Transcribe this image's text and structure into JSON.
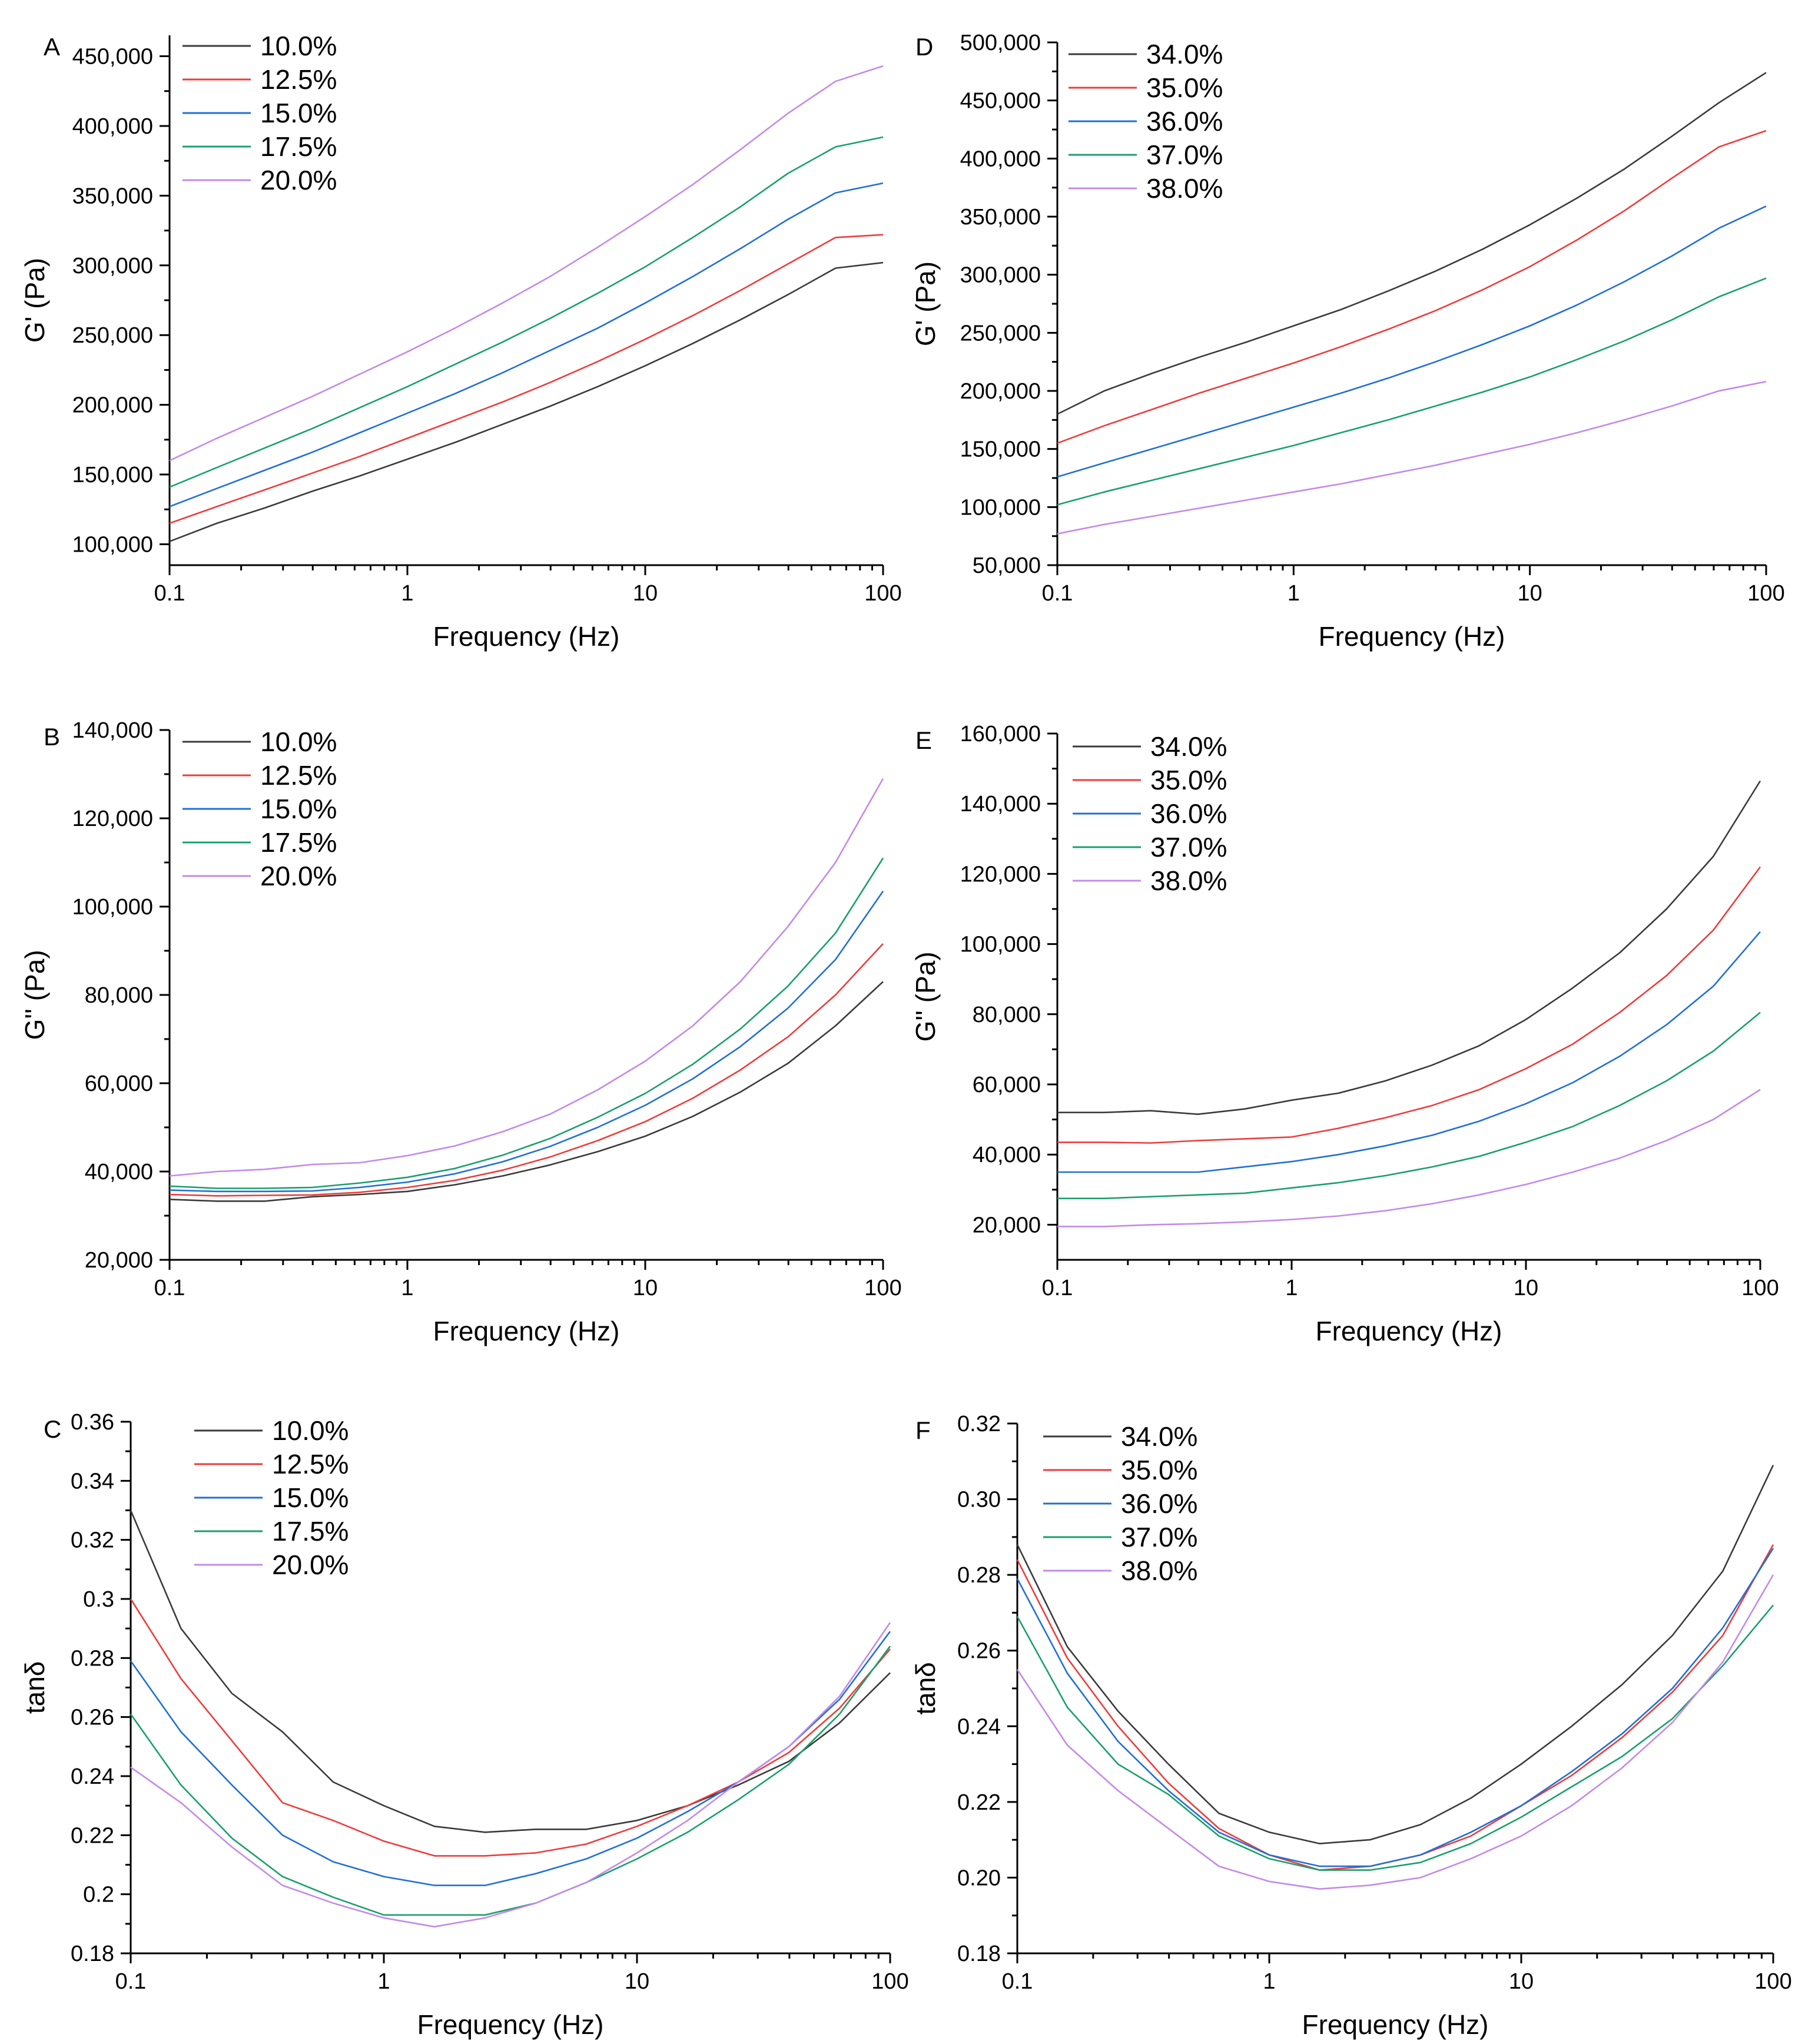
{
  "figure": {
    "colors": [
      "#3a3a3a",
      "#ee3b3b",
      "#1f6fd6",
      "#17a06a",
      "#c489e8"
    ]
  },
  "chart_data": [
    {
      "panel_label": "A",
      "type": "line",
      "ylabel": "G' (Pa)",
      "xlabel": "Frequency (Hz)",
      "xscale": "log",
      "xlim": [
        0.1,
        100
      ],
      "ylim": [
        85000,
        465000
      ],
      "xticks": [
        0.1,
        1,
        10,
        100
      ],
      "xtick_labels": [
        "0.1",
        "1",
        "10",
        "100"
      ],
      "yticks": [
        100000,
        150000,
        200000,
        250000,
        300000,
        350000,
        400000,
        450000
      ],
      "ytick_labels": [
        "100,000",
        "150,000",
        "200,000",
        "250,000",
        "300,000",
        "350,000",
        "400,000",
        "450,000"
      ],
      "legend_position": "top-left",
      "x": [
        0.1,
        0.158,
        0.251,
        0.398,
        0.631,
        1,
        1.585,
        2.512,
        3.981,
        6.31,
        10,
        15.85,
        25.12,
        39.81,
        63.1,
        100
      ],
      "series": [
        {
          "name": "10.0%",
          "values": [
            102000,
            115000,
            126000,
            138000,
            149000,
            161000,
            173000,
            186000,
            199000,
            213000,
            228000,
            244000,
            261000,
            279000,
            298000,
            302000
          ]
        },
        {
          "name": "12.5%",
          "values": [
            115000,
            127000,
            139000,
            151000,
            163000,
            176000,
            189000,
            202000,
            216000,
            231000,
            247000,
            264000,
            282000,
            301000,
            320000,
            322000
          ]
        },
        {
          "name": "15.0%",
          "values": [
            127000,
            140000,
            153000,
            166000,
            180000,
            194000,
            208000,
            223000,
            239000,
            255000,
            273000,
            292000,
            312000,
            333000,
            352000,
            359000
          ]
        },
        {
          "name": "17.5%",
          "values": [
            141000,
            155000,
            169000,
            183000,
            198000,
            213000,
            229000,
            245000,
            262000,
            280000,
            299000,
            320000,
            342000,
            366000,
            385000,
            392000
          ]
        },
        {
          "name": "20.0%",
          "values": [
            160000,
            176000,
            191000,
            206000,
            222000,
            238000,
            255000,
            273000,
            292000,
            313000,
            335000,
            358000,
            383000,
            409000,
            432000,
            443000
          ]
        }
      ]
    },
    {
      "panel_label": "B",
      "type": "line",
      "ylabel": "G'' (Pa)",
      "xlabel": "Frequency (Hz)",
      "xscale": "log",
      "xlim": [
        0.1,
        100
      ],
      "ylim": [
        20000,
        140000
      ],
      "xticks": [
        0.1,
        1,
        10,
        100
      ],
      "xtick_labels": [
        "0.1",
        "1",
        "10",
        "100"
      ],
      "yticks": [
        20000,
        40000,
        60000,
        80000,
        100000,
        120000,
        140000
      ],
      "ytick_labels": [
        "20,000",
        "40,000",
        "60,000",
        "80,000",
        "100,000",
        "120,000",
        "140,000"
      ],
      "legend_position": "top-left",
      "x": [
        0.1,
        0.158,
        0.251,
        0.398,
        0.631,
        1,
        1.585,
        2.512,
        3.981,
        6.31,
        10,
        15.85,
        25.12,
        39.81,
        63.1,
        100
      ],
      "series": [
        {
          "name": "10.0%",
          "values": [
            33700,
            33300,
            33300,
            34300,
            34800,
            35500,
            37000,
            39000,
            41500,
            44500,
            48000,
            52500,
            58000,
            64500,
            73000,
            83000
          ]
        },
        {
          "name": "12.5%",
          "values": [
            34800,
            34500,
            34600,
            34700,
            35300,
            36400,
            38000,
            40300,
            43300,
            47000,
            51300,
            56600,
            63000,
            70500,
            80000,
            91600
          ]
        },
        {
          "name": "15.0%",
          "values": [
            35800,
            35500,
            35500,
            35600,
            36400,
            37600,
            39500,
            42200,
            45700,
            50000,
            55000,
            61000,
            68300,
            77000,
            88000,
            103500
          ]
        },
        {
          "name": "17.5%",
          "values": [
            36700,
            36200,
            36200,
            36400,
            37400,
            38700,
            40700,
            43700,
            47500,
            52300,
            57700,
            64300,
            72300,
            82000,
            94000,
            111000
          ]
        },
        {
          "name": "20.0%",
          "values": [
            39000,
            40000,
            40500,
            41600,
            42000,
            43600,
            45800,
            49000,
            53000,
            58500,
            65000,
            73000,
            83000,
            95500,
            110000,
            129000
          ]
        }
      ]
    },
    {
      "panel_label": "C",
      "type": "line",
      "ylabel": "tanδ",
      "xlabel": "Frequency (Hz)",
      "xscale": "log",
      "xlim": [
        0.1,
        100
      ],
      "ylim": [
        0.18,
        0.36
      ],
      "xticks": [
        0.1,
        1,
        10,
        100
      ],
      "xtick_labels": [
        "0.1",
        "1",
        "10",
        "100"
      ],
      "yticks": [
        0.18,
        0.2,
        0.22,
        0.24,
        0.26,
        0.28,
        0.3,
        0.32,
        0.34,
        0.36
      ],
      "ytick_labels": [
        "0.18",
        "0.2",
        "0.22",
        "0.24",
        "0.26",
        "0.28",
        "0.3",
        "0.32",
        "0.34",
        "0.36"
      ],
      "legend_position": "top-left",
      "x": [
        0.1,
        0.158,
        0.251,
        0.398,
        0.631,
        1,
        1.585,
        2.512,
        3.981,
        6.31,
        10,
        15.85,
        25.12,
        39.81,
        63.1,
        100
      ],
      "series": [
        {
          "name": "10.0%",
          "values": [
            0.33,
            0.29,
            0.268,
            0.255,
            0.238,
            0.23,
            0.223,
            0.221,
            0.222,
            0.222,
            0.225,
            0.23,
            0.237,
            0.245,
            0.258,
            0.275
          ]
        },
        {
          "name": "12.5%",
          "values": [
            0.3,
            0.273,
            0.252,
            0.231,
            0.225,
            0.218,
            0.213,
            0.213,
            0.214,
            0.217,
            0.223,
            0.23,
            0.238,
            0.248,
            0.263,
            0.283
          ]
        },
        {
          "name": "15.0%",
          "values": [
            0.279,
            0.255,
            0.237,
            0.22,
            0.211,
            0.206,
            0.203,
            0.203,
            0.207,
            0.212,
            0.219,
            0.228,
            0.238,
            0.25,
            0.266,
            0.289
          ]
        },
        {
          "name": "17.5%",
          "values": [
            0.261,
            0.237,
            0.219,
            0.206,
            0.199,
            0.193,
            0.193,
            0.193,
            0.197,
            0.204,
            0.212,
            0.221,
            0.232,
            0.244,
            0.261,
            0.284
          ]
        },
        {
          "name": "20.0%",
          "values": [
            0.243,
            0.231,
            0.216,
            0.203,
            0.197,
            0.192,
            0.189,
            0.192,
            0.197,
            0.204,
            0.214,
            0.225,
            0.238,
            0.25,
            0.267,
            0.292
          ]
        }
      ]
    },
    {
      "panel_label": "D",
      "type": "line",
      "ylabel": "G' (Pa)",
      "xlabel": "Frequency (Hz)",
      "xscale": "log",
      "xlim": [
        0.1,
        100
      ],
      "ylim": [
        50000,
        500000
      ],
      "xticks": [
        0.1,
        1,
        10,
        100
      ],
      "xtick_labels": [
        "0.1",
        "1",
        "10",
        "100"
      ],
      "yticks": [
        50000,
        100000,
        150000,
        200000,
        250000,
        300000,
        350000,
        400000,
        450000,
        500000
      ],
      "ytick_labels": [
        "50,000",
        "100,000",
        "150,000",
        "200,000",
        "250,000",
        "300,000",
        "350,000",
        "400,000",
        "450,000",
        "500,000"
      ],
      "legend_position": "top-left",
      "x": [
        0.1,
        0.158,
        0.251,
        0.398,
        0.631,
        1,
        1.585,
        2.512,
        3.981,
        6.31,
        10,
        15.85,
        25.12,
        39.81,
        63.1,
        100
      ],
      "series": [
        {
          "name": "34.0%",
          "values": [
            180000,
            200000,
            215000,
            229000,
            242000,
            256000,
            270000,
            286000,
            303000,
            322000,
            343000,
            366000,
            391000,
            419000,
            448000,
            474000
          ]
        },
        {
          "name": "35.0%",
          "values": [
            155000,
            170000,
            184000,
            198000,
            211000,
            224000,
            238000,
            253000,
            269000,
            287000,
            307000,
            330000,
            355000,
            383000,
            410000,
            424000
          ]
        },
        {
          "name": "36.0%",
          "values": [
            126000,
            138000,
            150000,
            162000,
            174000,
            186000,
            198000,
            211000,
            225000,
            240000,
            256000,
            274000,
            294000,
            316000,
            340000,
            359000
          ]
        },
        {
          "name": "37.0%",
          "values": [
            102000,
            113000,
            123000,
            133000,
            143000,
            153000,
            164000,
            175000,
            187000,
            199000,
            212000,
            227000,
            243000,
            261000,
            281000,
            297000
          ]
        },
        {
          "name": "38.0%",
          "values": [
            77000,
            85000,
            92000,
            99000,
            106000,
            113000,
            120000,
            128000,
            136000,
            145000,
            154000,
            164000,
            175000,
            187000,
            200000,
            208000
          ]
        }
      ]
    },
    {
      "panel_label": "E",
      "type": "line",
      "ylabel": "G'' (Pa)",
      "xlabel": "Frequency (Hz)",
      "xscale": "log",
      "xlim": [
        0.1,
        100
      ],
      "ylim": [
        10000,
        160000
      ],
      "xticks": [
        0.1,
        1,
        10,
        100
      ],
      "xtick_labels": [
        "0.1",
        "1",
        "10",
        "100"
      ],
      "yticks": [
        20000,
        40000,
        60000,
        80000,
        100000,
        120000,
        140000,
        160000
      ],
      "ytick_labels": [
        "20,000",
        "40,000",
        "60,000",
        "80,000",
        "100,000",
        "120,000",
        "140,000",
        "160,000"
      ],
      "legend_position": "top-left",
      "x": [
        0.1,
        0.158,
        0.251,
        0.398,
        0.631,
        1,
        1.585,
        2.512,
        3.981,
        6.31,
        10,
        15.85,
        25.12,
        39.81,
        63.1,
        100
      ],
      "series": [
        {
          "name": "34.0%",
          "values": [
            52000,
            52000,
            52500,
            51500,
            53000,
            55500,
            57500,
            61000,
            65500,
            71000,
            78500,
            87500,
            97500,
            110000,
            125000,
            146500
          ]
        },
        {
          "name": "35.0%",
          "values": [
            43500,
            43500,
            43300,
            44000,
            44500,
            45000,
            47500,
            50500,
            54000,
            58500,
            64500,
            71500,
            80500,
            91000,
            104000,
            122000
          ]
        },
        {
          "name": "36.0%",
          "values": [
            35000,
            35000,
            35000,
            35000,
            36500,
            38000,
            40000,
            42500,
            45500,
            49500,
            54500,
            60500,
            68000,
            77000,
            88000,
            103500
          ]
        },
        {
          "name": "37.0%",
          "values": [
            27500,
            27500,
            28000,
            28500,
            29000,
            30500,
            32000,
            34000,
            36500,
            39500,
            43500,
            48000,
            54000,
            61000,
            69500,
            80500
          ]
        },
        {
          "name": "38.0%",
          "values": [
            19500,
            19500,
            20000,
            20300,
            20800,
            21500,
            22500,
            24000,
            26000,
            28500,
            31500,
            35000,
            39000,
            44000,
            50000,
            58500
          ]
        }
      ]
    },
    {
      "panel_label": "F",
      "type": "line",
      "ylabel": "tanδ",
      "xlabel": "Frequency (Hz)",
      "xscale": "log",
      "xlim": [
        0.1,
        100
      ],
      "ylim": [
        0.18,
        0.32
      ],
      "xticks": [
        0.1,
        1,
        10,
        100
      ],
      "xtick_labels": [
        "0.1",
        "1",
        "10",
        "100"
      ],
      "yticks": [
        0.18,
        0.2,
        0.22,
        0.24,
        0.26,
        0.28,
        0.3,
        0.32
      ],
      "ytick_labels": [
        "0.18",
        "0.20",
        "0.22",
        "0.24",
        "0.26",
        "0.28",
        "0.30",
        "0.32"
      ],
      "legend_position": "top-left",
      "x": [
        0.1,
        0.158,
        0.251,
        0.398,
        0.631,
        1,
        1.585,
        2.512,
        3.981,
        6.31,
        10,
        15.85,
        25.12,
        39.81,
        63.1,
        100
      ],
      "series": [
        {
          "name": "34.0%",
          "values": [
            0.288,
            0.261,
            0.244,
            0.23,
            0.217,
            0.212,
            0.209,
            0.21,
            0.214,
            0.221,
            0.23,
            0.24,
            0.251,
            0.264,
            0.281,
            0.309
          ]
        },
        {
          "name": "35.0%",
          "values": [
            0.284,
            0.258,
            0.24,
            0.225,
            0.213,
            0.206,
            0.202,
            0.203,
            0.206,
            0.211,
            0.219,
            0.227,
            0.237,
            0.249,
            0.264,
            0.288
          ]
        },
        {
          "name": "36.0%",
          "values": [
            0.279,
            0.254,
            0.236,
            0.223,
            0.212,
            0.206,
            0.203,
            0.203,
            0.206,
            0.212,
            0.219,
            0.228,
            0.238,
            0.25,
            0.266,
            0.287
          ]
        },
        {
          "name": "37.0%",
          "values": [
            0.269,
            0.245,
            0.23,
            0.222,
            0.211,
            0.205,
            0.202,
            0.202,
            0.204,
            0.209,
            0.216,
            0.224,
            0.232,
            0.242,
            0.256,
            0.272
          ]
        },
        {
          "name": "38.0%",
          "values": [
            0.255,
            0.235,
            0.223,
            0.213,
            0.203,
            0.199,
            0.197,
            0.198,
            0.2,
            0.205,
            0.211,
            0.219,
            0.229,
            0.241,
            0.257,
            0.28
          ]
        }
      ]
    }
  ]
}
